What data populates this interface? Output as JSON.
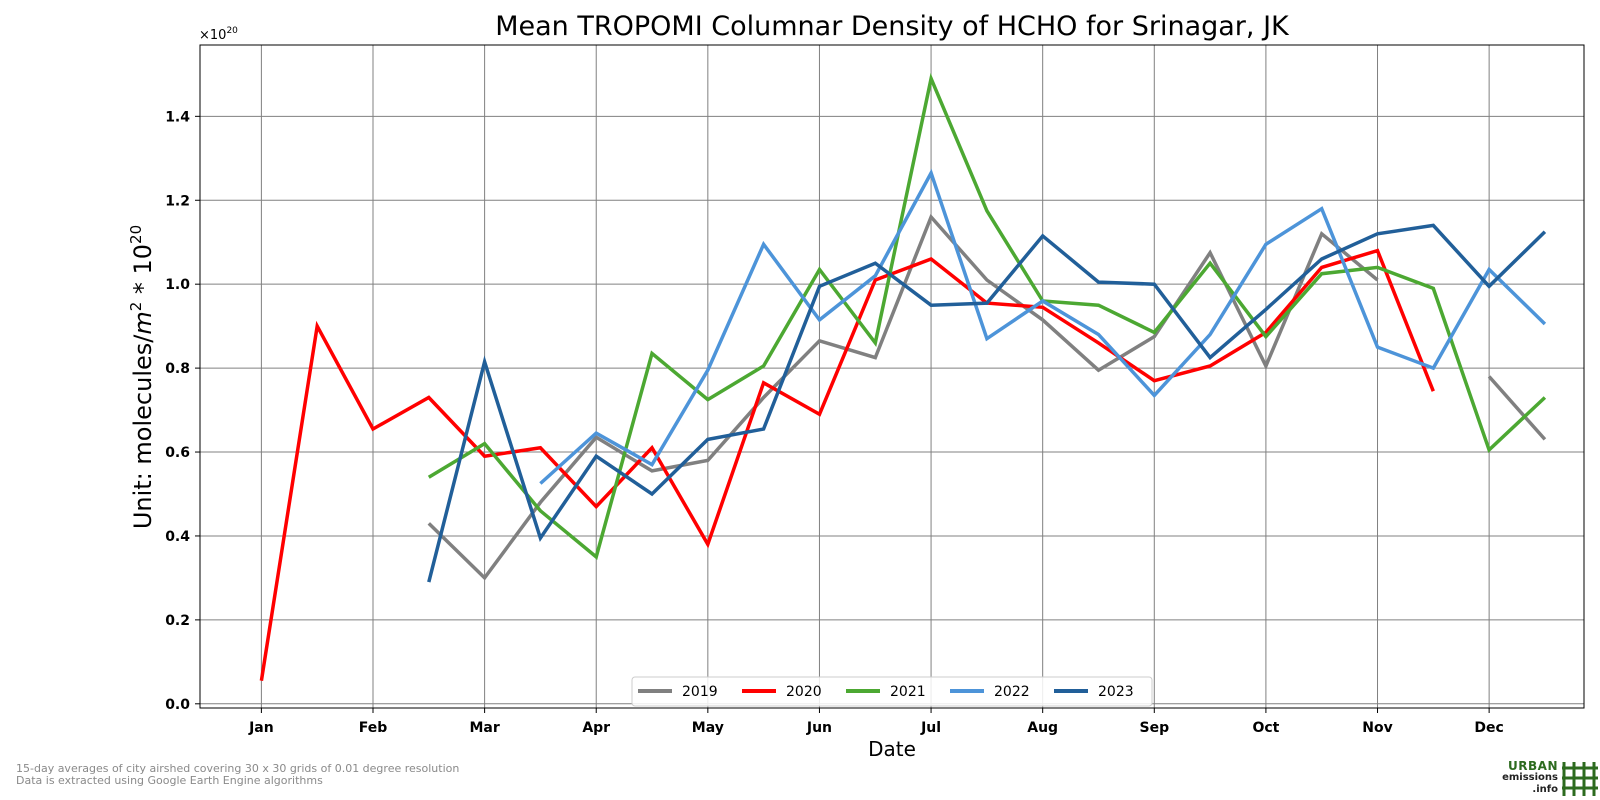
{
  "chart_data": {
    "type": "line",
    "title": "Mean TROPOMI Columnar Density of HCHO for Srinagar, JK",
    "xlabel": "Date",
    "ylabel_prefix": "Unit: molecules/",
    "ylabel_m": "m",
    "ylabel_m_exp": "2",
    "ylabel_mid": " * 10",
    "ylabel_exp": "20",
    "offset_base": "×10",
    "offset_exp": "20",
    "x_unit": "month (15-day periods)",
    "xlim": [
      -0.55,
      11.85
    ],
    "ylim": [
      -0.01,
      1.57
    ],
    "x_ticks": [
      0,
      1,
      2,
      3,
      4,
      5,
      6,
      7,
      8,
      9,
      10,
      11
    ],
    "x_tick_labels": [
      "Jan",
      "Feb",
      "Mar",
      "Apr",
      "May",
      "Jun",
      "Jul",
      "Aug",
      "Sep",
      "Oct",
      "Nov",
      "Dec"
    ],
    "y_ticks": [
      0.0,
      0.2,
      0.4,
      0.6,
      0.8,
      1.0,
      1.2,
      1.4
    ],
    "y_tick_labels": [
      "0.0",
      "0.2",
      "0.4",
      "0.6",
      "0.8",
      "1.0",
      "1.2",
      "1.4"
    ],
    "grid": true,
    "legend_position": "bottom-center",
    "x": [
      0,
      0.5,
      1,
      1.5,
      2,
      2.5,
      3,
      3.5,
      4,
      4.5,
      5,
      5.5,
      6,
      6.5,
      7,
      7.5,
      8,
      8.5,
      9,
      9.5,
      10,
      10.5,
      11,
      11.5
    ],
    "series": [
      {
        "name": "2019",
        "color": "#808080",
        "values": [
          null,
          null,
          null,
          0.43,
          0.3,
          0.48,
          0.635,
          0.555,
          0.58,
          0.73,
          0.865,
          0.825,
          1.16,
          1.01,
          0.915,
          0.795,
          0.875,
          1.075,
          0.805,
          1.12,
          1.01,
          null,
          0.78,
          0.63
        ]
      },
      {
        "name": "2020",
        "color": "#ff0000",
        "values": [
          0.055,
          0.9,
          0.655,
          0.73,
          0.59,
          0.61,
          0.47,
          0.61,
          0.38,
          0.765,
          0.69,
          1.01,
          1.06,
          0.955,
          0.945,
          0.86,
          0.77,
          0.805,
          0.885,
          1.04,
          1.08,
          0.745,
          null,
          null
        ]
      },
      {
        "name": "2021",
        "color": "#4ca832",
        "values": [
          null,
          null,
          null,
          0.54,
          0.62,
          0.46,
          0.35,
          0.835,
          0.725,
          0.805,
          1.035,
          0.86,
          1.49,
          1.175,
          0.96,
          0.95,
          0.885,
          1.05,
          0.875,
          1.025,
          1.04,
          0.99,
          0.605,
          0.73
        ]
      },
      {
        "name": "2022",
        "color": "#4d94d9",
        "values": [
          null,
          null,
          null,
          null,
          null,
          0.525,
          0.645,
          0.57,
          0.795,
          1.095,
          0.915,
          1.02,
          1.265,
          0.87,
          0.96,
          0.88,
          0.735,
          0.88,
          1.095,
          1.18,
          0.85,
          0.8,
          1.035,
          0.905
        ]
      },
      {
        "name": "2023",
        "color": "#215f99",
        "values": [
          null,
          null,
          null,
          0.29,
          0.815,
          0.395,
          0.59,
          0.5,
          0.63,
          0.655,
          0.995,
          1.05,
          0.95,
          0.955,
          1.115,
          1.005,
          1.0,
          0.825,
          0.94,
          1.06,
          1.12,
          1.14,
          0.995,
          1.125
        ]
      }
    ]
  },
  "footnotes": [
    "15-day averages of city airshed covering 30 x 30 grids of 0.01 degree resolution",
    "Data is extracted using Google Earth Engine algorithms"
  ],
  "logo": {
    "line1": "URBAN",
    "line2": "emissions",
    "line3": ".info",
    "color": "#2d6b1f"
  }
}
